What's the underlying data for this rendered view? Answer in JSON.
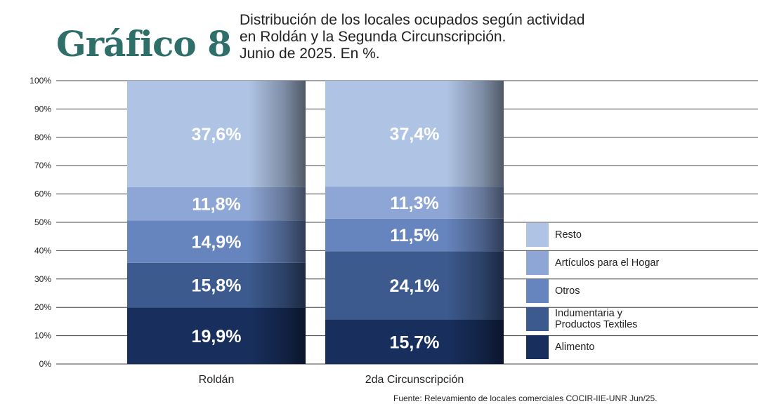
{
  "header": {
    "figure_label": "Gráfico 8",
    "subtitle_lines": [
      "Distribución de los locales ocupados según actividad",
      "en Roldán y la Segunda Circunscripción.",
      "Junio de 2025. En %."
    ]
  },
  "source": "Fuente: Relevamiento de locales comerciales COCIR-IIE-UNR Jun/25.",
  "chart_data": {
    "type": "bar",
    "stacked": true,
    "title": "Distribución de los locales ocupados según actividad en Roldán y la Segunda Circunscripción. Junio de 2025. En %.",
    "categories": [
      "Roldán",
      "2da Circunscripción"
    ],
    "ylim": [
      0,
      100
    ],
    "y_ticks": [
      "0%",
      "10%",
      "20%",
      "30%",
      "40%",
      "50%",
      "60%",
      "70%",
      "80%",
      "90%",
      "100%"
    ],
    "grid": true,
    "legend_position": "right",
    "series": [
      {
        "name": "Alimento",
        "values": [
          19.9,
          15.7
        ],
        "labels": [
          "19,9%",
          "15,7%"
        ],
        "color": "#182f5e"
      },
      {
        "name": "Indumentaria y Productos Textiles",
        "values": [
          15.8,
          24.1
        ],
        "labels": [
          "15,8%",
          "24,1%"
        ],
        "color": "#3c5a8e"
      },
      {
        "name": "Otros",
        "values": [
          14.9,
          11.5
        ],
        "labels": [
          "14,9%",
          "11,5%"
        ],
        "color": "#6684bd"
      },
      {
        "name": "Artículos para el Hogar",
        "values": [
          11.8,
          11.3
        ],
        "labels": [
          "11,8%",
          "11,3%"
        ],
        "color": "#8ea6d5"
      },
      {
        "name": "Resto",
        "values": [
          37.6,
          37.4
        ],
        "labels": [
          "37,6%",
          "37,4%"
        ],
        "color": "#afc4e5"
      }
    ]
  },
  "legend": {
    "items": [
      {
        "lines": [
          "Resto"
        ],
        "color": "#afc4e5"
      },
      {
        "lines": [
          "Artículos para el Hogar"
        ],
        "color": "#8ea6d5"
      },
      {
        "lines": [
          "Otros"
        ],
        "color": "#6684bd"
      },
      {
        "lines": [
          "Indumentaria y",
          "Productos Textiles"
        ],
        "color": "#3c5a8e"
      },
      {
        "lines": [
          "Alimento"
        ],
        "color": "#182f5e"
      }
    ]
  }
}
